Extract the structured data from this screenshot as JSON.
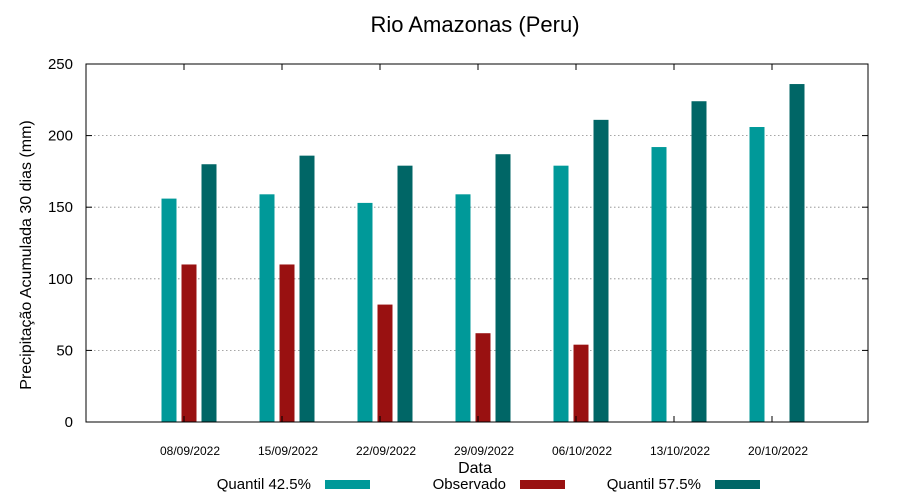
{
  "chart_data": {
    "type": "bar",
    "title": "Rio Amazonas (Peru)",
    "xlabel": "Data",
    "ylabel": "Precipitação Acumulada 30 dias (mm)",
    "ylim": [
      0,
      250
    ],
    "yticks": [
      0,
      50,
      100,
      150,
      200,
      250
    ],
    "grid": true,
    "legend_position": "bottom",
    "categories": [
      "08/09/2022",
      "15/09/2022",
      "22/09/2022",
      "29/09/2022",
      "06/10/2022",
      "13/10/2022",
      "20/10/2022"
    ],
    "series": [
      {
        "name": "Quantil 42.5%",
        "color": "#009999",
        "values": [
          156,
          159,
          153,
          159,
          179,
          192,
          206
        ]
      },
      {
        "name": "Observado",
        "color": "#991111",
        "values": [
          110,
          110,
          82,
          62,
          54,
          null,
          null
        ]
      },
      {
        "name": "Quantil 57.5%",
        "color": "#006666",
        "values": [
          180,
          186,
          179,
          187,
          211,
          224,
          236
        ]
      }
    ]
  }
}
